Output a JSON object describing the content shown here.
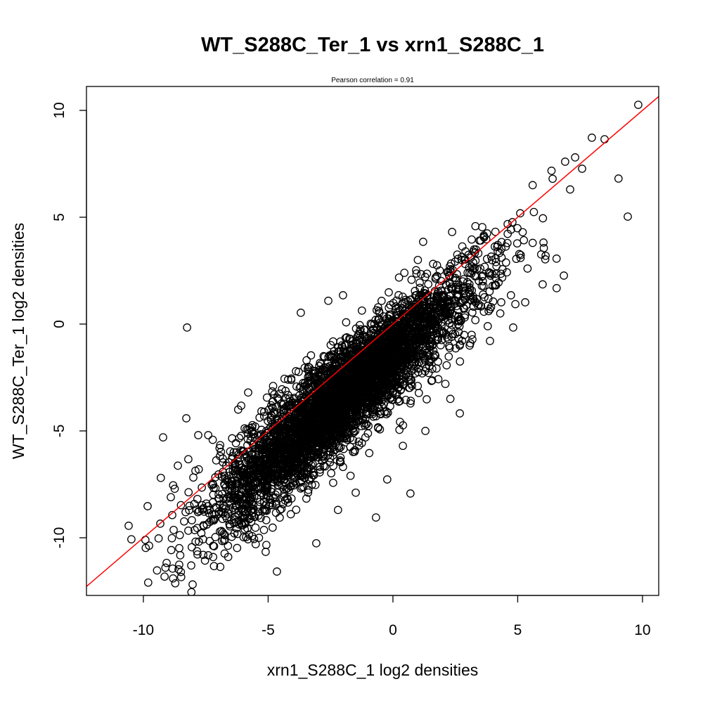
{
  "chart_data": {
    "type": "scatter",
    "title": "WT_S288C_Ter_1 vs xrn1_S288C_1",
    "subtitle": "Pearson correlation =  0.91",
    "xlabel": "xrn1_S288C_1 log2 densities",
    "ylabel": "WT_S288C_Ter_1 log2 densities",
    "xlim": [
      -12.28,
      10.65
    ],
    "ylim": [
      -12.7,
      11.12
    ],
    "xticks": [
      -10,
      -5,
      0,
      5,
      10
    ],
    "yticks": [
      -10,
      -5,
      0,
      5,
      10
    ],
    "xtick_labels": [
      "-10",
      "-5",
      "0",
      "5",
      "10"
    ],
    "ytick_labels": [
      "-10",
      "-5",
      "0",
      "5",
      "10"
    ],
    "grid": false,
    "marker": "open-circle",
    "point_color": "#000000",
    "reference_line": {
      "slope": 1,
      "intercept": 0,
      "color": "#ff0000"
    },
    "dense_cloud": {
      "n": 4500,
      "x_mean": -2.0,
      "x_sd": 2.6,
      "x_min": -10.5,
      "x_max": 8.5,
      "offset": -1.4,
      "noise_sd": 1.1,
      "seed": 7
    },
    "outliers": [
      [
        9.83,
        10.26
      ],
      [
        9.41,
        5.03
      ],
      [
        -8.25,
        -0.16
      ],
      [
        -3.69,
        0.53
      ],
      [
        -2.59,
        1.09
      ],
      [
        -2.0,
        1.35
      ],
      [
        1.21,
        3.85
      ],
      [
        2.37,
        4.31
      ],
      [
        6.85,
        2.27
      ],
      [
        6.0,
        1.86
      ],
      [
        6.56,
        1.68
      ],
      [
        5.94,
        3.26
      ],
      [
        2.68,
        -4.18
      ],
      [
        -0.23,
        -7.27
      ],
      [
        0.7,
        -7.93
      ],
      [
        -0.68,
        -9.05
      ],
      [
        -4.65,
        -11.58
      ],
      [
        -8.59,
        -11.48
      ],
      [
        -10.59,
        -9.44
      ],
      [
        -10.48,
        -10.07
      ],
      [
        -9.21,
        -5.3
      ],
      [
        -8.28,
        -4.41
      ],
      [
        -5.1,
        -10.66
      ],
      [
        -3.07,
        -10.26
      ],
      [
        -1.49,
        -7.89
      ],
      [
        4.82,
        -0.16
      ],
      [
        3.89,
        -0.79
      ],
      [
        5.3,
        1.02
      ],
      [
        4.73,
        1.35
      ],
      [
        -9.83,
        -8.52
      ],
      [
        -9.92,
        -10.1
      ],
      [
        9.04,
        6.81
      ],
      [
        8.48,
        8.65
      ],
      [
        7.97,
        8.72
      ],
      [
        7.58,
        7.27
      ],
      [
        7.3,
        7.8
      ],
      [
        6.9,
        7.6
      ],
      [
        6.4,
        6.8
      ],
      [
        5.6,
        6.5
      ],
      [
        7.1,
        6.3
      ],
      [
        5.2,
        4.3
      ],
      [
        5.6,
        3.8
      ],
      [
        4.2,
        3.7
      ],
      [
        3.5,
        2.6
      ],
      [
        1.0,
        3.0
      ],
      [
        -5.8,
        -3.2
      ],
      [
        -6.2,
        -4.0
      ],
      [
        -7.4,
        -5.2
      ],
      [
        -7.8,
        -5.2
      ],
      [
        -4.2,
        -2.6
      ],
      [
        -4.8,
        -2.9
      ],
      [
        -3.1,
        -2.2
      ],
      [
        -8.9,
        -8.1
      ],
      [
        -9.3,
        -7.2
      ],
      [
        -7.6,
        -10.8
      ],
      [
        -6.6,
        -10.9
      ],
      [
        -5.5,
        -10.3
      ],
      [
        -2.2,
        -8.7
      ],
      [
        -1.7,
        -7.1
      ],
      [
        0.4,
        -5.7
      ],
      [
        1.3,
        -5.0
      ],
      [
        2.1,
        -2.8
      ],
      [
        2.3,
        -3.5
      ],
      [
        3.1,
        -0.9
      ],
      [
        3.8,
        -0.1
      ],
      [
        4.3,
        0.5
      ]
    ]
  }
}
